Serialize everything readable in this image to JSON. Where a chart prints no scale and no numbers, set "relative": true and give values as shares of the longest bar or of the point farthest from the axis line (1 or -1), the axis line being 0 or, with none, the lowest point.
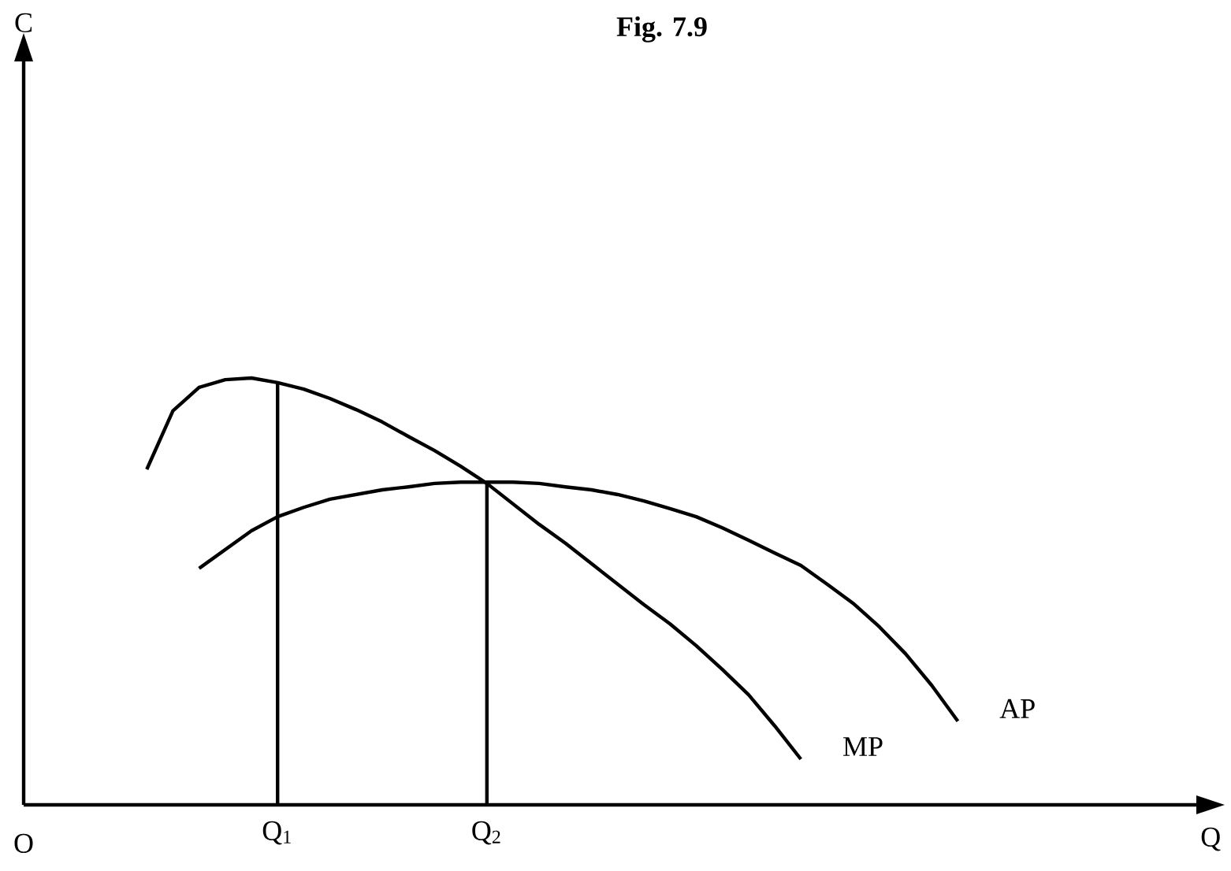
{
  "chart_data": {
    "type": "line",
    "title": "Fig. 7.9",
    "relative": true,
    "categories": [
      null,
      null,
      null,
      null,
      null,
      null,
      null,
      null,
      null,
      "Q$_{1}$",
      null,
      null,
      null,
      null,
      null,
      null,
      null,
      "Q$_{2}$",
      null,
      null,
      null,
      null,
      null,
      null,
      null,
      null,
      null,
      null,
      null,
      null,
      null,
      null,
      null,
      null,
      null,
      null,
      null
    ],
    "annotations": [
      "O",
      "C",
      "Q"
    ],
    "ref_lines": [
      {
        "axis": "x",
        "value": "Q$_{1}$",
        "color": "#000000"
      },
      {
        "axis": "x",
        "value": "Q$_{2}$",
        "color": "#000000"
      }
    ],
    "series": [
      {
        "name": "MP",
        "color": "#000000",
        "values": [
          null,
          null,
          null,
          null,
          0.786,
          0.923,
          0.978,
          0.996,
          1.0,
          0.989,
          0.974,
          0.952,
          0.926,
          0.897,
          0.863,
          0.83,
          0.793,
          0.753,
          0.705,
          0.657,
          0.613,
          0.565,
          0.517,
          0.469,
          0.424,
          0.373,
          0.317,
          0.258,
          0.185,
          0.107,
          null,
          null,
          null,
          null,
          null,
          null,
          null
        ]
      },
      {
        "name": "AP",
        "color": "#000000",
        "values": [
          null,
          null,
          null,
          null,
          null,
          null,
          0.554,
          0.598,
          0.642,
          0.675,
          0.697,
          0.716,
          0.727,
          0.738,
          0.745,
          0.753,
          0.756,
          0.756,
          0.756,
          0.753,
          0.745,
          0.738,
          0.727,
          0.712,
          0.694,
          0.675,
          0.649,
          0.62,
          0.59,
          0.561,
          0.517,
          0.472,
          0.417,
          0.354,
          0.28,
          0.196,
          null
        ]
      }
    ]
  }
}
